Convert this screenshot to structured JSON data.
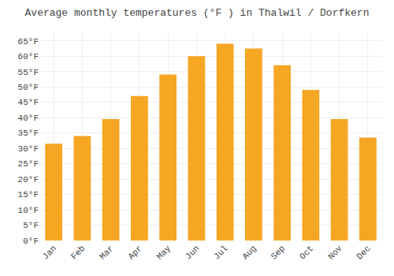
{
  "chart_data": {
    "type": "bar",
    "title": "Average monthly temperatures (°F ) in Thalwil / Dorfkern",
    "categories": [
      "Jan",
      "Feb",
      "Mar",
      "Apr",
      "May",
      "Jun",
      "Jul",
      "Aug",
      "Sep",
      "Oct",
      "Nov",
      "Dec"
    ],
    "values": [
      31.5,
      34.0,
      39.5,
      47.0,
      54.0,
      60.0,
      64.0,
      62.5,
      57.0,
      49.0,
      39.5,
      33.5
    ],
    "color": "#F5A623",
    "ylim": [
      0,
      68
    ],
    "yticks": [
      {
        "value": 0,
        "label": "0°F"
      },
      {
        "value": 5,
        "label": "5°F"
      },
      {
        "value": 10,
        "label": "10°F"
      },
      {
        "value": 15,
        "label": "15°F"
      },
      {
        "value": 20,
        "label": "20°F"
      },
      {
        "value": 25,
        "label": "25°F"
      },
      {
        "value": 30,
        "label": "30°F"
      },
      {
        "value": 35,
        "label": "35°F"
      },
      {
        "value": 40,
        "label": "40°F"
      },
      {
        "value": 45,
        "label": "45°F"
      },
      {
        "value": 50,
        "label": "50°F"
      },
      {
        "value": 55,
        "label": "55°F"
      },
      {
        "value": 60,
        "label": "60°F"
      },
      {
        "value": 65,
        "label": "65°F"
      }
    ],
    "grid": true
  }
}
